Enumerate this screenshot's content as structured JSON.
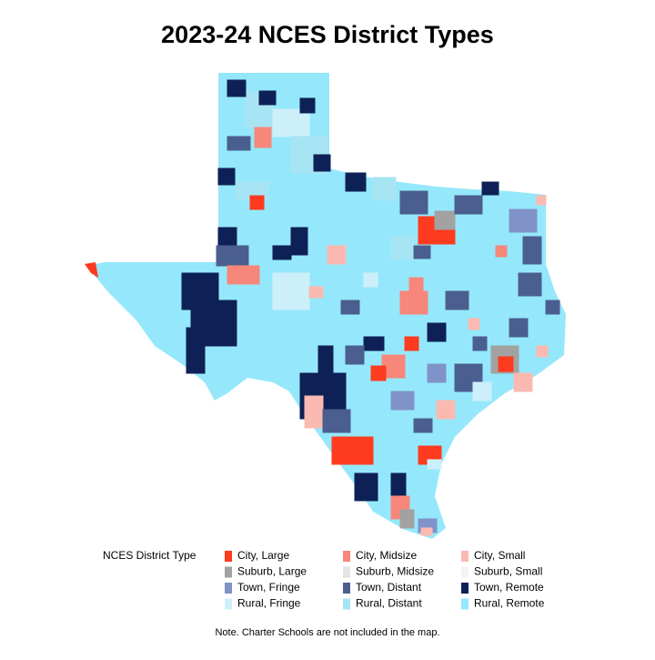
{
  "title": "2023-24 NCES District Types",
  "legend": {
    "title": "NCES District Type",
    "entries": [
      {
        "label": "City, Large",
        "color": "#ff3b1f"
      },
      {
        "label": "City, Midsize",
        "color": "#f7877b"
      },
      {
        "label": "City, Small",
        "color": "#fbbab1"
      },
      {
        "label": "Suburb, Large",
        "color": "#a2a2a2"
      },
      {
        "label": "Suburb, Midsize",
        "color": "#e4e4e4"
      },
      {
        "label": "Suburb, Small",
        "color": "#f4f4f4"
      },
      {
        "label": "Town, Fringe",
        "color": "#7f93c8"
      },
      {
        "label": "Town, Distant",
        "color": "#4a5f8f"
      },
      {
        "label": "Town, Remote",
        "color": "#0e2157"
      },
      {
        "label": "Rural, Fringe",
        "color": "#cdeffa"
      },
      {
        "label": "Rural, Distant",
        "color": "#a8e5f4"
      },
      {
        "label": "Rural, Remote",
        "color": "#95e8fb"
      }
    ]
  },
  "note": "Note. Charter Schools are not included in the map."
}
